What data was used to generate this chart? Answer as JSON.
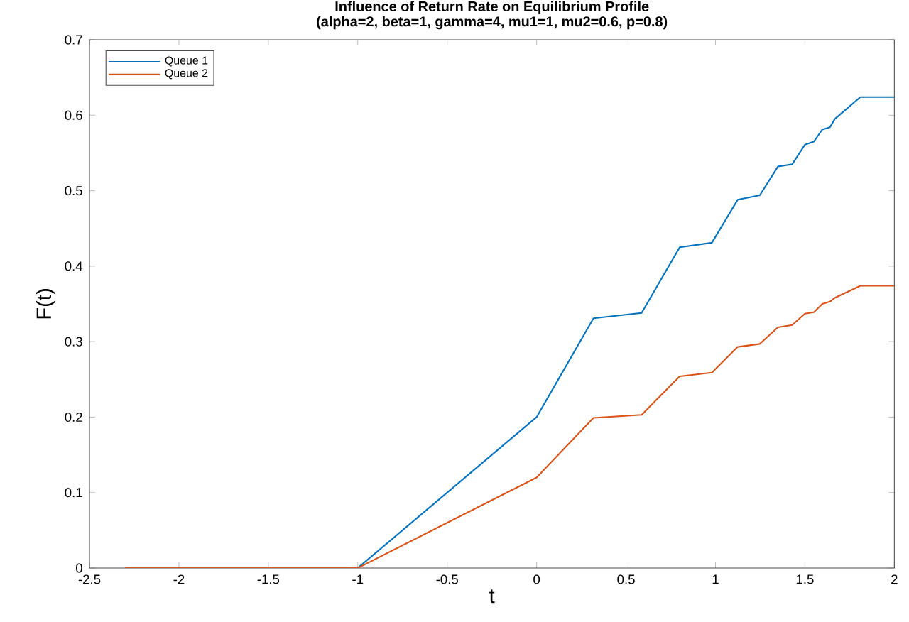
{
  "chart_data": {
    "type": "line",
    "title": "Influence of Return Rate on Equilibrium Profile",
    "subtitle": "(alpha=2, beta=1, gamma=4, mu1=1, mu2=0.6, p=0.8)",
    "xlabel": "t",
    "ylabel": "F(t)",
    "xlim": [
      -2.5,
      2
    ],
    "ylim": [
      0,
      0.7
    ],
    "xticks": [
      -2.5,
      -2,
      -1.5,
      -1,
      -0.5,
      0,
      0.5,
      1,
      1.5,
      2
    ],
    "yticks": [
      0,
      0.1,
      0.2,
      0.3,
      0.4,
      0.5,
      0.6,
      0.7
    ],
    "legend": "top left",
    "grid": false,
    "series": [
      {
        "name": "Queue 1",
        "color": "#0072bd",
        "x": [
          -2.3,
          -1,
          0,
          0.318,
          0.587,
          0.8,
          0.98,
          1.124,
          1.248,
          1.349,
          1.429,
          1.5,
          1.55,
          1.597,
          1.64,
          1.667,
          1.81,
          2
        ],
        "values": [
          0,
          0,
          0.2,
          0.331,
          0.338,
          0.425,
          0.431,
          0.488,
          0.494,
          0.532,
          0.535,
          0.561,
          0.565,
          0.581,
          0.584,
          0.595,
          0.624,
          0.624
        ]
      },
      {
        "name": "Queue 2",
        "color": "#d95319",
        "x": [
          -2.3,
          -1,
          0,
          0.318,
          0.587,
          0.8,
          0.98,
          1.124,
          1.248,
          1.349,
          1.429,
          1.5,
          1.55,
          1.597,
          1.64,
          1.667,
          1.81,
          2
        ],
        "values": [
          0,
          0,
          0.12,
          0.199,
          0.203,
          0.254,
          0.259,
          0.293,
          0.297,
          0.319,
          0.322,
          0.337,
          0.339,
          0.35,
          0.353,
          0.358,
          0.374,
          0.374
        ]
      }
    ]
  }
}
